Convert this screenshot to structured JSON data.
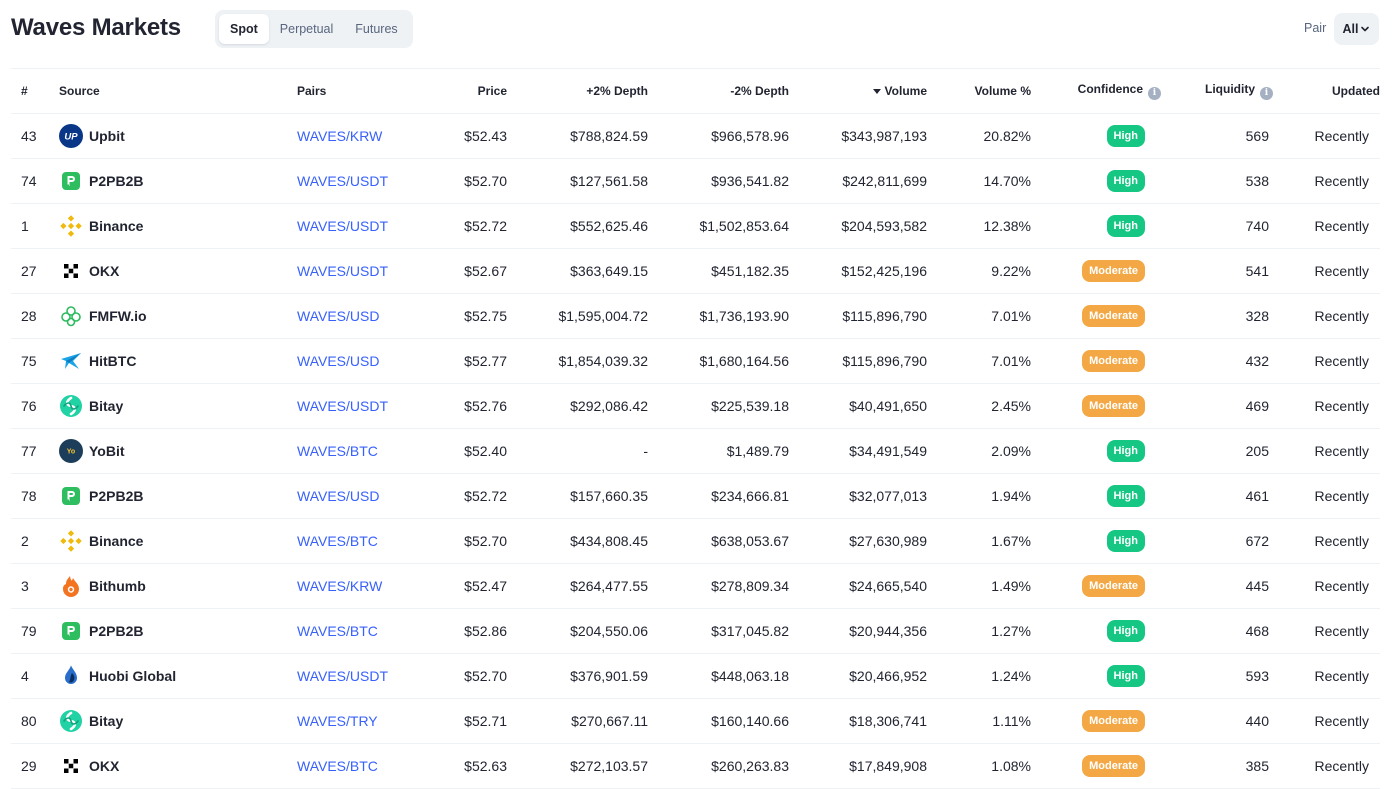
{
  "header": {
    "title": "Waves Markets",
    "tabs": [
      {
        "label": "Spot",
        "active": true
      },
      {
        "label": "Perpetual",
        "active": false
      },
      {
        "label": "Futures",
        "active": false
      }
    ],
    "pair_label": "Pair",
    "pair_value": "All"
  },
  "columns": {
    "rank": "#",
    "source": "Source",
    "pairs": "Pairs",
    "price": "Price",
    "depth_plus": "+2% Depth",
    "depth_minus": "-2% Depth",
    "volume": "Volume",
    "volume_pct": "Volume %",
    "confidence": "Confidence",
    "liquidity": "Liquidity",
    "updated": "Updated"
  },
  "colors": {
    "link": "#3861fb",
    "high": "#16c784",
    "moderate": "#f3a845"
  },
  "rows": [
    {
      "rank": "43",
      "source": "Upbit",
      "icon": "upbit-logo-icon",
      "pair": "WAVES/KRW",
      "price": "$52.43",
      "depth_plus": "$788,824.59",
      "depth_minus": "$966,578.96",
      "volume": "$343,987,193",
      "volume_pct": "20.82%",
      "confidence": "High",
      "liquidity": "569",
      "updated": "Recently"
    },
    {
      "rank": "74",
      "source": "P2PB2B",
      "icon": "p2pb2b-logo-icon",
      "pair": "WAVES/USDT",
      "price": "$52.70",
      "depth_plus": "$127,561.58",
      "depth_minus": "$936,541.82",
      "volume": "$242,811,699",
      "volume_pct": "14.70%",
      "confidence": "High",
      "liquidity": "538",
      "updated": "Recently"
    },
    {
      "rank": "1",
      "source": "Binance",
      "icon": "binance-logo-icon",
      "pair": "WAVES/USDT",
      "price": "$52.72",
      "depth_plus": "$552,625.46",
      "depth_minus": "$1,502,853.64",
      "volume": "$204,593,582",
      "volume_pct": "12.38%",
      "confidence": "High",
      "liquidity": "740",
      "updated": "Recently"
    },
    {
      "rank": "27",
      "source": "OKX",
      "icon": "okx-logo-icon",
      "pair": "WAVES/USDT",
      "price": "$52.67",
      "depth_plus": "$363,649.15",
      "depth_minus": "$451,182.35",
      "volume": "$152,425,196",
      "volume_pct": "9.22%",
      "confidence": "Moderate",
      "liquidity": "541",
      "updated": "Recently"
    },
    {
      "rank": "28",
      "source": "FMFW.io",
      "icon": "fmfw-logo-icon",
      "pair": "WAVES/USD",
      "price": "$52.75",
      "depth_plus": "$1,595,004.72",
      "depth_minus": "$1,736,193.90",
      "volume": "$115,896,790",
      "volume_pct": "7.01%",
      "confidence": "Moderate",
      "liquidity": "328",
      "updated": "Recently"
    },
    {
      "rank": "75",
      "source": "HitBTC",
      "icon": "hitbtc-logo-icon",
      "pair": "WAVES/USD",
      "price": "$52.77",
      "depth_plus": "$1,854,039.32",
      "depth_minus": "$1,680,164.56",
      "volume": "$115,896,790",
      "volume_pct": "7.01%",
      "confidence": "Moderate",
      "liquidity": "432",
      "updated": "Recently"
    },
    {
      "rank": "76",
      "source": "Bitay",
      "icon": "bitay-logo-icon",
      "pair": "WAVES/USDT",
      "price": "$52.76",
      "depth_plus": "$292,086.42",
      "depth_minus": "$225,539.18",
      "volume": "$40,491,650",
      "volume_pct": "2.45%",
      "confidence": "Moderate",
      "liquidity": "469",
      "updated": "Recently"
    },
    {
      "rank": "77",
      "source": "YoBit",
      "icon": "yobit-logo-icon",
      "pair": "WAVES/BTC",
      "price": "$52.40",
      "depth_plus": "-",
      "depth_minus": "$1,489.79",
      "volume": "$34,491,549",
      "volume_pct": "2.09%",
      "confidence": "High",
      "liquidity": "205",
      "updated": "Recently"
    },
    {
      "rank": "78",
      "source": "P2PB2B",
      "icon": "p2pb2b-logo-icon",
      "pair": "WAVES/USD",
      "price": "$52.72",
      "depth_plus": "$157,660.35",
      "depth_minus": "$234,666.81",
      "volume": "$32,077,013",
      "volume_pct": "1.94%",
      "confidence": "High",
      "liquidity": "461",
      "updated": "Recently"
    },
    {
      "rank": "2",
      "source": "Binance",
      "icon": "binance-logo-icon",
      "pair": "WAVES/BTC",
      "price": "$52.70",
      "depth_plus": "$434,808.45",
      "depth_minus": "$638,053.67",
      "volume": "$27,630,989",
      "volume_pct": "1.67%",
      "confidence": "High",
      "liquidity": "672",
      "updated": "Recently"
    },
    {
      "rank": "3",
      "source": "Bithumb",
      "icon": "bithumb-logo-icon",
      "pair": "WAVES/KRW",
      "price": "$52.47",
      "depth_plus": "$264,477.55",
      "depth_minus": "$278,809.34",
      "volume": "$24,665,540",
      "volume_pct": "1.49%",
      "confidence": "Moderate",
      "liquidity": "445",
      "updated": "Recently"
    },
    {
      "rank": "79",
      "source": "P2PB2B",
      "icon": "p2pb2b-logo-icon",
      "pair": "WAVES/BTC",
      "price": "$52.86",
      "depth_plus": "$204,550.06",
      "depth_minus": "$317,045.82",
      "volume": "$20,944,356",
      "volume_pct": "1.27%",
      "confidence": "High",
      "liquidity": "468",
      "updated": "Recently"
    },
    {
      "rank": "4",
      "source": "Huobi Global",
      "icon": "huobi-logo-icon",
      "pair": "WAVES/USDT",
      "price": "$52.70",
      "depth_plus": "$376,901.59",
      "depth_minus": "$448,063.18",
      "volume": "$20,466,952",
      "volume_pct": "1.24%",
      "confidence": "High",
      "liquidity": "593",
      "updated": "Recently"
    },
    {
      "rank": "80",
      "source": "Bitay",
      "icon": "bitay-logo-icon",
      "pair": "WAVES/TRY",
      "price": "$52.71",
      "depth_plus": "$270,667.11",
      "depth_minus": "$160,140.66",
      "volume": "$18,306,741",
      "volume_pct": "1.11%",
      "confidence": "Moderate",
      "liquidity": "440",
      "updated": "Recently"
    },
    {
      "rank": "29",
      "source": "OKX",
      "icon": "okx-logo-icon",
      "pair": "WAVES/BTC",
      "price": "$52.63",
      "depth_plus": "$272,103.57",
      "depth_minus": "$260,263.83",
      "volume": "$17,849,908",
      "volume_pct": "1.08%",
      "confidence": "Moderate",
      "liquidity": "385",
      "updated": "Recently"
    }
  ]
}
